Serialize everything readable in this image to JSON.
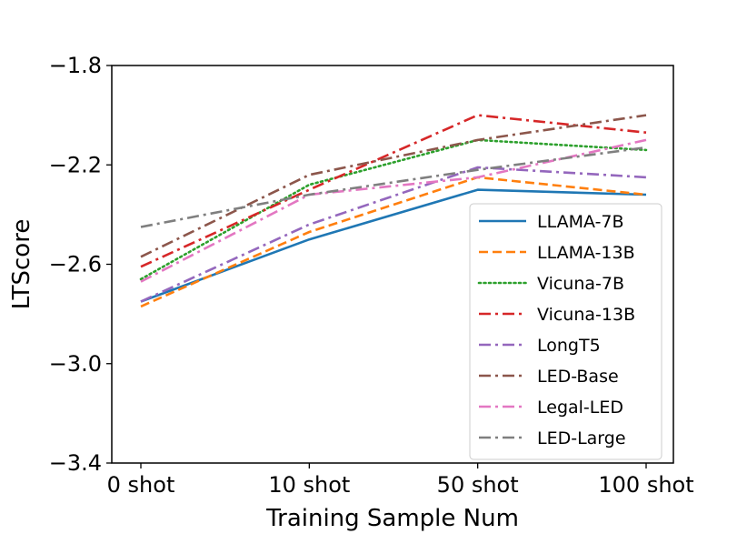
{
  "chart_data": {
    "type": "line",
    "title": "",
    "xlabel": "Training Sample Num",
    "ylabel": "LTScore",
    "categories": [
      "0 shot",
      "10 shot",
      "50 shot",
      "100 shot"
    ],
    "ylim": [
      -3.4,
      -1.8
    ],
    "yticks": [
      -1.8,
      -2.2,
      -2.6,
      -3.0,
      -3.4
    ],
    "ytick_labels": [
      "−1.8",
      "−2.2",
      "−2.6",
      "−3.0",
      "−3.4"
    ],
    "grid": false,
    "legend_position": "lower-right",
    "series": [
      {
        "name": "LLAMA-7B",
        "values": [
          -2.75,
          -2.5,
          -2.3,
          -2.32
        ],
        "color": "#1f77b4",
        "style": "solid"
      },
      {
        "name": "LLAMA-13B",
        "values": [
          -2.77,
          -2.47,
          -2.25,
          -2.32
        ],
        "color": "#ff7f0e",
        "style": "dashed"
      },
      {
        "name": "Vicuna-7B",
        "values": [
          -2.66,
          -2.28,
          -2.1,
          -2.14
        ],
        "color": "#2ca02c",
        "style": "dotted"
      },
      {
        "name": "Vicuna-13B",
        "values": [
          -2.61,
          -2.3,
          -2.0,
          -2.07
        ],
        "color": "#d62728",
        "style": "dashdot"
      },
      {
        "name": "LongT5",
        "values": [
          -2.75,
          -2.44,
          -2.21,
          -2.25
        ],
        "color": "#9467bd",
        "style": "dashdot"
      },
      {
        "name": "LED-Base",
        "values": [
          -2.57,
          -2.24,
          -2.1,
          -2.0
        ],
        "color": "#8c564b",
        "style": "dashdot"
      },
      {
        "name": "Legal-LED",
        "values": [
          -2.67,
          -2.32,
          -2.25,
          -2.1
        ],
        "color": "#e377c2",
        "style": "dashdot"
      },
      {
        "name": "LED-Large",
        "values": [
          -2.45,
          -2.32,
          -2.22,
          -2.13
        ],
        "color": "#7f7f7f",
        "style": "dashdot"
      }
    ]
  }
}
